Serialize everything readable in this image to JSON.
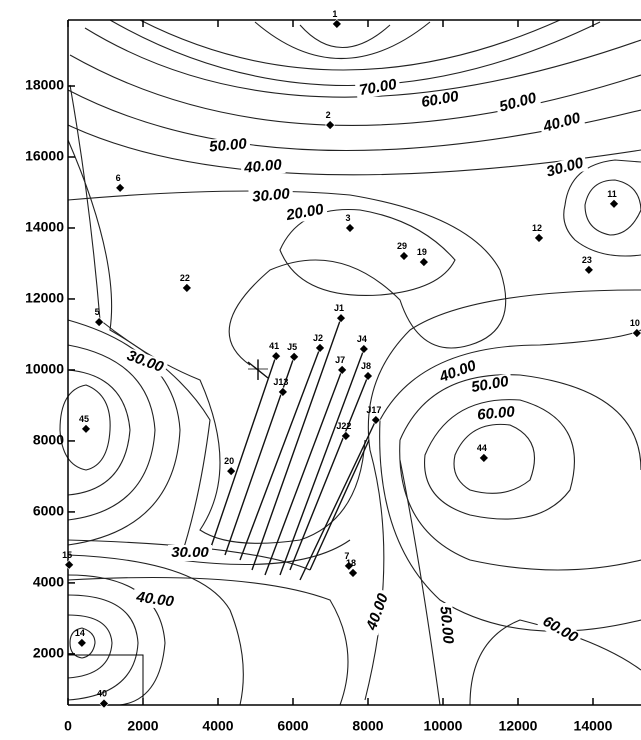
{
  "chart_data": {
    "type": "scatter",
    "xlim": [
      0,
      15280
    ],
    "ylim": [
      560,
      19860
    ],
    "xticks": [
      0,
      2000,
      4000,
      6000,
      8000,
      10000,
      12000,
      14000
    ],
    "yticks": [
      2000,
      4000,
      6000,
      8000,
      10000,
      12000,
      14000,
      16000,
      18000
    ],
    "color": "#000000",
    "labels": [
      "1",
      "2",
      "6",
      "3",
      "11",
      "12",
      "29",
      "19",
      "23",
      "22",
      "5",
      "10",
      "J1",
      "41",
      "J2",
      "J4",
      "J5",
      "J7",
      "J8",
      "J13",
      "45",
      "J17",
      "J22",
      "44",
      "20",
      "7",
      "18",
      "15",
      "14",
      "40"
    ],
    "x": [
      7170,
      6990,
      1390,
      7520,
      14560,
      12560,
      8960,
      9490,
      13890,
      3170,
      830,
      15170,
      7280,
      5550,
      6720,
      7890,
      6030,
      7310,
      8000,
      5730,
      480,
      8210,
      7410,
      11090,
      4350,
      7490,
      7600,
      30,
      370,
      960
    ],
    "y": [
      19750,
      16900,
      15130,
      14000,
      14680,
      13720,
      13210,
      13040,
      12820,
      12310,
      11350,
      11040,
      11460,
      10390,
      10620,
      10590,
      10370,
      10000,
      9830,
      9380,
      8340,
      8590,
      8140,
      7520,
      7150,
      4480,
      4280,
      4510,
      2310,
      600
    ],
    "contour_labels": [
      "70.00",
      "60.00",
      "50.00",
      "40.00",
      "50.00",
      "40.00",
      "30.00",
      "30.00",
      "20.00",
      "30.00",
      "40.00",
      "50.00",
      "60.00",
      "30.00",
      "40.00",
      "40.00",
      "50.00",
      "60.00"
    ]
  }
}
